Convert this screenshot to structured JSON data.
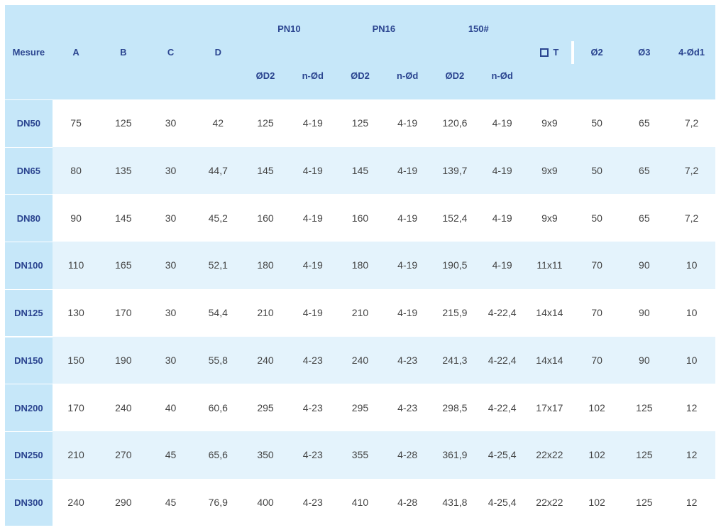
{
  "header": {
    "mesure": "Mesure",
    "left": [
      "A",
      "B",
      "C",
      "D"
    ],
    "groups": [
      {
        "name": "PN10",
        "sub": [
          "ØD2",
          "n-Ød"
        ]
      },
      {
        "name": "PN16",
        "sub": [
          "ØD2",
          "n-Ød"
        ]
      },
      {
        "name": "150#",
        "sub": [
          "ØD2",
          "n-Ød"
        ]
      }
    ],
    "right": [
      "T",
      "Ø2",
      "Ø3",
      "4-Ød1"
    ]
  },
  "rows": [
    [
      "DN50",
      "75",
      "125",
      "30",
      "42",
      "125",
      "4-19",
      "125",
      "4-19",
      "120,6",
      "4-19",
      "9x9",
      "50",
      "65",
      "7,2"
    ],
    [
      "DN65",
      "80",
      "135",
      "30",
      "44,7",
      "145",
      "4-19",
      "145",
      "4-19",
      "139,7",
      "4-19",
      "9x9",
      "50",
      "65",
      "7,2"
    ],
    [
      "DN80",
      "90",
      "145",
      "30",
      "45,2",
      "160",
      "4-19",
      "160",
      "4-19",
      "152,4",
      "4-19",
      "9x9",
      "50",
      "65",
      "7,2"
    ],
    [
      "DN100",
      "110",
      "165",
      "30",
      "52,1",
      "180",
      "4-19",
      "180",
      "4-19",
      "190,5",
      "4-19",
      "11x11",
      "70",
      "90",
      "10"
    ],
    [
      "DN125",
      "130",
      "170",
      "30",
      "54,4",
      "210",
      "4-19",
      "210",
      "4-19",
      "215,9",
      "4-22,4",
      "14x14",
      "70",
      "90",
      "10"
    ],
    [
      "DN150",
      "150",
      "190",
      "30",
      "55,8",
      "240",
      "4-23",
      "240",
      "4-23",
      "241,3",
      "4-22,4",
      "14x14",
      "70",
      "90",
      "10"
    ],
    [
      "DN200",
      "170",
      "240",
      "40",
      "60,6",
      "295",
      "4-23",
      "295",
      "4-23",
      "298,5",
      "4-22,4",
      "17x17",
      "102",
      "125",
      "12"
    ],
    [
      "DN250",
      "210",
      "270",
      "45",
      "65,6",
      "350",
      "4-23",
      "355",
      "4-28",
      "361,9",
      "4-25,4",
      "22x22",
      "102",
      "125",
      "12"
    ],
    [
      "DN300",
      "240",
      "290",
      "45",
      "76,9",
      "400",
      "4-23",
      "410",
      "4-28",
      "431,8",
      "4-25,4",
      "22x22",
      "102",
      "125",
      "12"
    ]
  ]
}
